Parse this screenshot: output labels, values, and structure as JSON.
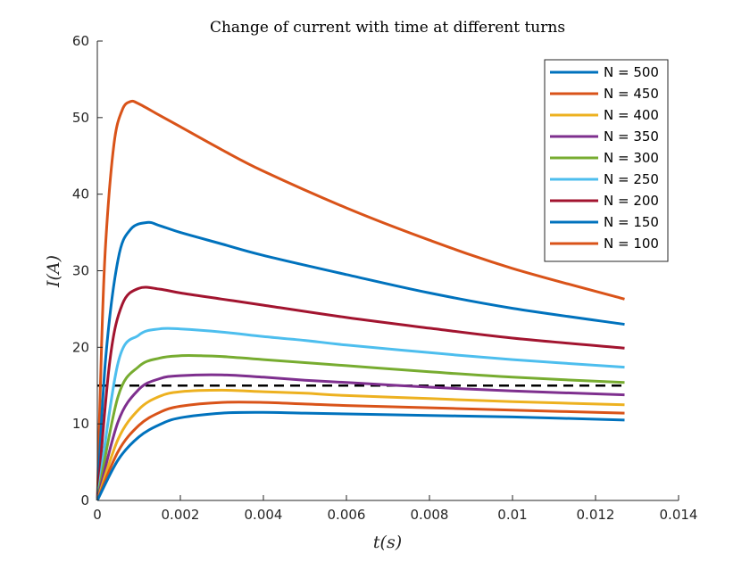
{
  "chart_data": {
    "type": "line",
    "title": "Change of current with time at different turns",
    "xlabel": "t(s)",
    "ylabel": "I(A)",
    "xlim": [
      0,
      0.014
    ],
    "ylim": [
      0,
      60
    ],
    "xticks": [
      0,
      0.002,
      0.004,
      0.006,
      0.008,
      0.01,
      0.012,
      0.014
    ],
    "xtick_labels": [
      "0",
      "0.002",
      "0.004",
      "0.006",
      "0.008",
      "0.01",
      "0.012",
      "0.014"
    ],
    "yticks": [
      0,
      10,
      20,
      30,
      40,
      50,
      60
    ],
    "ytick_labels": [
      "0",
      "10",
      "20",
      "30",
      "40",
      "50",
      "60"
    ],
    "grid": false,
    "legend_position": "top-right",
    "reference_line": {
      "y": 15,
      "style": "dashed",
      "color": "#000000"
    },
    "series": [
      {
        "name": "N = 500",
        "color": "#0072BD",
        "x": [
          0,
          0.0005,
          0.001,
          0.0015,
          0.002,
          0.003,
          0.004,
          0.005,
          0.006,
          0.008,
          0.01,
          0.0127
        ],
        "y": [
          0,
          5.3,
          8.3,
          9.9,
          10.8,
          11.4,
          11.5,
          11.4,
          11.3,
          11.1,
          10.9,
          10.5
        ]
      },
      {
        "name": "N = 450",
        "color": "#D95319",
        "x": [
          0,
          0.0005,
          0.001,
          0.0015,
          0.002,
          0.003,
          0.004,
          0.005,
          0.006,
          0.008,
          0.01,
          0.0127
        ],
        "y": [
          0,
          6.4,
          9.8,
          11.5,
          12.3,
          12.8,
          12.8,
          12.6,
          12.4,
          12.1,
          11.8,
          11.4
        ]
      },
      {
        "name": "N = 400",
        "color": "#EDB120",
        "x": [
          0,
          0.0005,
          0.001,
          0.0015,
          0.002,
          0.003,
          0.004,
          0.005,
          0.006,
          0.008,
          0.01,
          0.0127
        ],
        "y": [
          0,
          8.0,
          11.9,
          13.6,
          14.2,
          14.4,
          14.2,
          14.0,
          13.7,
          13.3,
          12.9,
          12.5
        ]
      },
      {
        "name": "N = 350",
        "color": "#7E2F8E",
        "x": [
          0,
          0.0005,
          0.001,
          0.0015,
          0.002,
          0.003,
          0.004,
          0.005,
          0.006,
          0.008,
          0.01,
          0.0127
        ],
        "y": [
          0,
          10.3,
          14.5,
          15.9,
          16.3,
          16.4,
          16.1,
          15.7,
          15.4,
          14.8,
          14.3,
          13.8
        ]
      },
      {
        "name": "N = 300",
        "color": "#77AC30",
        "x": [
          0,
          0.0005,
          0.001,
          0.0015,
          0.002,
          0.0025,
          0.003,
          0.004,
          0.006,
          0.008,
          0.01,
          0.0127
        ],
        "y": [
          0,
          13.6,
          17.5,
          18.6,
          18.9,
          18.9,
          18.8,
          18.4,
          17.6,
          16.8,
          16.1,
          15.4
        ]
      },
      {
        "name": "N = 250",
        "color": "#4DBEEE",
        "x": [
          0,
          0.0005,
          0.001,
          0.0015,
          0.002,
          0.003,
          0.004,
          0.005,
          0.006,
          0.008,
          0.01,
          0.0127
        ],
        "y": [
          0,
          18.0,
          21.6,
          22.4,
          22.4,
          22.0,
          21.4,
          20.9,
          20.3,
          19.3,
          18.4,
          17.4
        ]
      },
      {
        "name": "N = 200",
        "color": "#A2142F",
        "x": [
          0,
          0.0003,
          0.0006,
          0.001,
          0.0015,
          0.002,
          0.003,
          0.004,
          0.006,
          0.008,
          0.01,
          0.0127
        ],
        "y": [
          0,
          18.2,
          25.6,
          27.7,
          27.6,
          27.1,
          26.3,
          25.5,
          23.9,
          22.5,
          21.2,
          19.9
        ]
      },
      {
        "name": "N = 150",
        "color": "#0072BD",
        "x": [
          0,
          0.0002,
          0.0005,
          0.0008,
          0.0012,
          0.0015,
          0.002,
          0.003,
          0.004,
          0.006,
          0.008,
          0.01,
          0.0127
        ],
        "y": [
          0,
          18.5,
          31.5,
          35.4,
          36.3,
          35.9,
          35.0,
          33.5,
          32.0,
          29.5,
          27.1,
          25.1,
          23.0
        ]
      },
      {
        "name": "N = 100",
        "color": "#D95319",
        "x": [
          0,
          0.0001,
          0.0002,
          0.0004,
          0.0006,
          0.0008,
          0.001,
          0.0015,
          0.002,
          0.003,
          0.004,
          0.006,
          0.008,
          0.01,
          0.0127
        ],
        "y": [
          0,
          20.0,
          33.5,
          46.5,
          51.0,
          52.1,
          51.8,
          50.3,
          48.8,
          45.8,
          43.0,
          38.2,
          34.0,
          30.3,
          26.3
        ]
      }
    ]
  }
}
